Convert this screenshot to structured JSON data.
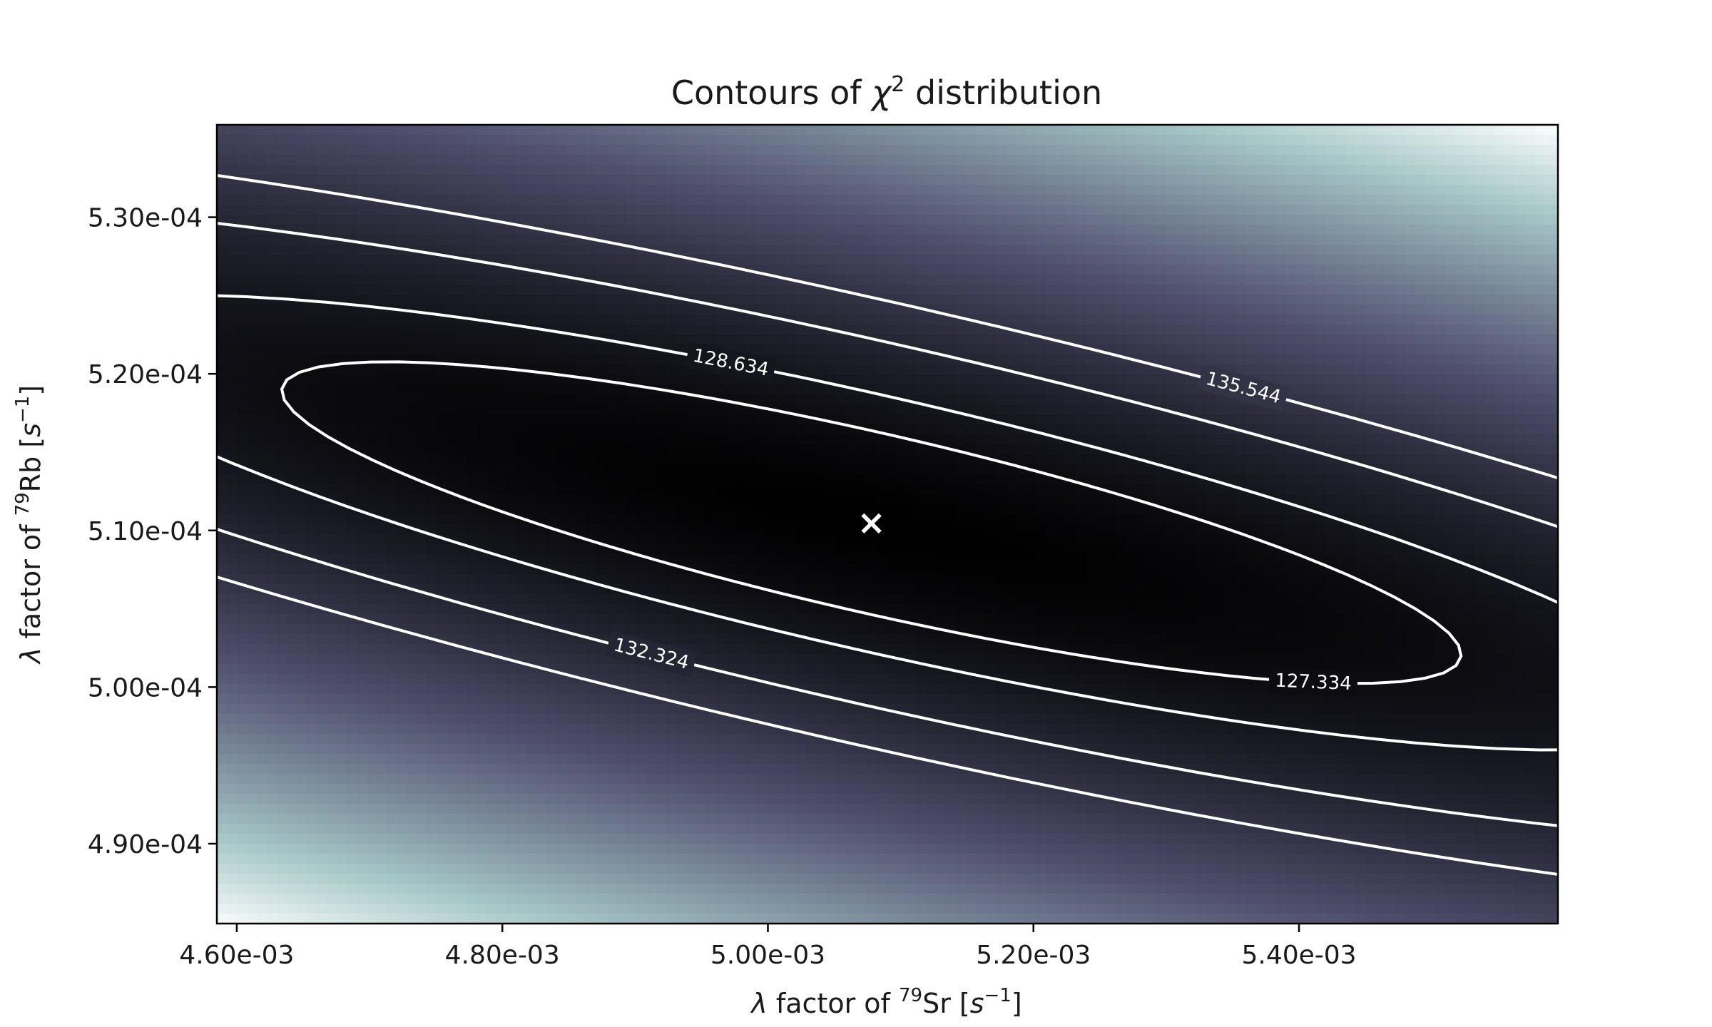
{
  "chart_data": {
    "type": "contour",
    "title": "Contours of χ² distribution",
    "title_parts": {
      "pre": "Contours of ",
      "symbol": "χ",
      "sup": "2",
      "post": " distribution"
    },
    "xlabel": "λ factor of ⁷⁹Sr [s⁻¹]",
    "ylabel": "λ factor of ⁷⁹Rb [s⁻¹]",
    "xlabel_parts": {
      "lambda": "λ",
      "pre": " factor of ",
      "iso": "79",
      "el": "Sr",
      "unit": "s",
      "exp": "−1"
    },
    "ylabel_parts": {
      "lambda": "λ",
      "pre": " factor of ",
      "iso": "79",
      "el": "Rb",
      "unit": "s",
      "exp": "−1"
    },
    "xlim": [
      0.004585,
      0.005595
    ],
    "ylim": [
      0.0004849,
      0.0005359
    ],
    "x_ticks": [
      {
        "value": 0.0046,
        "label": "4.60e-03"
      },
      {
        "value": 0.0048,
        "label": "4.80e-03"
      },
      {
        "value": 0.005,
        "label": "5.00e-03"
      },
      {
        "value": 0.0052,
        "label": "5.20e-03"
      },
      {
        "value": 0.0054,
        "label": "5.40e-03"
      }
    ],
    "y_ticks": [
      {
        "value": 0.00049,
        "label": "4.90e-04"
      },
      {
        "value": 0.0005,
        "label": "5.00e-04"
      },
      {
        "value": 0.00051,
        "label": "5.10e-04"
      },
      {
        "value": 0.00052,
        "label": "5.20e-04"
      },
      {
        "value": 0.00053,
        "label": "5.30e-04"
      }
    ],
    "minimum": {
      "x": 0.005078,
      "y": 0.0005105,
      "marker": "×"
    },
    "contours": [
      {
        "level": 127.334,
        "label": "127.334",
        "dr": 1
      },
      {
        "level": 128.634,
        "label": "128.634",
        "dr": 2
      },
      {
        "level": 132.324,
        "label": "132.324",
        "dr": 4
      },
      {
        "level": 135.544,
        "label": "135.544",
        "dr": 6
      }
    ],
    "grid": false,
    "colormap": "bone"
  }
}
